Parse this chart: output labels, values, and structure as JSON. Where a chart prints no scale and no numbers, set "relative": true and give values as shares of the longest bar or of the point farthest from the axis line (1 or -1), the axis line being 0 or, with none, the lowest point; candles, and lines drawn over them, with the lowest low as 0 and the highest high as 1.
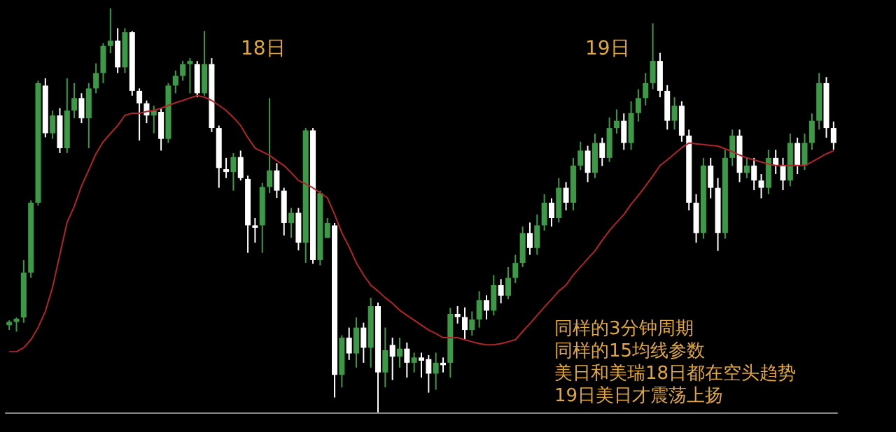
{
  "chart_data": [
    {
      "type": "candlestick",
      "relative": true,
      "categories": [
        null,
        null,
        null,
        null,
        null,
        null,
        null,
        null,
        null,
        null,
        null,
        null,
        null,
        null,
        null,
        null,
        null,
        null,
        null,
        null,
        null,
        null,
        null,
        null,
        null,
        null,
        null,
        null,
        null,
        null,
        null,
        null,
        null,
        null,
        null,
        null,
        null,
        null,
        null,
        null,
        null,
        null,
        null,
        null,
        null,
        null,
        null,
        null,
        null,
        null,
        null,
        null,
        null,
        null,
        null,
        null,
        null,
        null,
        null,
        null,
        null,
        null,
        null,
        null,
        null,
        null,
        null,
        null,
        null,
        null,
        null,
        null,
        null,
        null,
        null,
        null,
        null,
        null,
        null,
        null,
        null,
        null,
        null,
        null,
        null,
        null,
        null,
        null,
        null,
        null,
        null,
        null,
        null,
        null,
        null,
        null,
        null,
        null,
        null,
        null,
        null,
        null,
        null,
        null,
        null,
        null,
        null,
        null,
        null,
        null,
        null,
        null,
        null,
        null,
        null
      ],
      "ohlc": [
        [
          0.216,
          0.228,
          0.204,
          0.224
        ],
        [
          0.224,
          0.235,
          0.2,
          0.232
        ],
        [
          0.235,
          0.377,
          0.222,
          0.346
        ],
        [
          0.346,
          0.525,
          0.333,
          0.519
        ],
        [
          0.519,
          0.821,
          0.512,
          0.815
        ],
        [
          0.809,
          0.827,
          0.681,
          0.691
        ],
        [
          0.691,
          0.747,
          0.677,
          0.735
        ],
        [
          0.735,
          0.753,
          0.642,
          0.654
        ],
        [
          0.654,
          0.827,
          0.642,
          0.747
        ],
        [
          0.747,
          0.815,
          0.728,
          0.778
        ],
        [
          0.778,
          0.79,
          0.716,
          0.728
        ],
        [
          0.728,
          0.815,
          0.654,
          0.802
        ],
        [
          0.802,
          0.864,
          0.79,
          0.84
        ],
        [
          0.84,
          0.914,
          0.815,
          0.907
        ],
        [
          0.907,
          1,
          0.889,
          0.92
        ],
        [
          0.92,
          0.951,
          0.84,
          0.854
        ],
        [
          0.854,
          0.951,
          0.84,
          0.941
        ],
        [
          0.941,
          0.944,
          0.784,
          0.796
        ],
        [
          0.796,
          0.802,
          0.673,
          0.765
        ],
        [
          0.765,
          0.772,
          0.716,
          0.735
        ],
        [
          0.735,
          0.759,
          0.691,
          0.747
        ],
        [
          0.744,
          0.753,
          0.648,
          0.677
        ],
        [
          0.677,
          0.815,
          0.667,
          0.809
        ],
        [
          0.809,
          0.846,
          0.79,
          0.833
        ],
        [
          0.833,
          0.87,
          0.821,
          0.862
        ],
        [
          0.862,
          0.877,
          0.79,
          0.87
        ],
        [
          0.862,
          0.87,
          0.78,
          0.79
        ],
        [
          0.79,
          0.944,
          0.784,
          0.862
        ],
        [
          0.862,
          0.877,
          0.694,
          0.704
        ],
        [
          0.704,
          0.71,
          0.556,
          0.605
        ],
        [
          0.602,
          0.63,
          0.58,
          0.595
        ],
        [
          0.595,
          0.642,
          0.549,
          0.632
        ],
        [
          0.632,
          0.648,
          0.574,
          0.58
        ],
        [
          0.578,
          0.586,
          0.395,
          0.463
        ],
        [
          0.463,
          0.481,
          0.42,
          0.457
        ],
        [
          0.463,
          0.568,
          0.395,
          0.558
        ],
        [
          0.558,
          0.778,
          0.543,
          0.599
        ],
        [
          0.599,
          0.617,
          0.531,
          0.549
        ],
        [
          0.549,
          0.556,
          0.438,
          0.469
        ],
        [
          0.469,
          0.506,
          0.432,
          0.494
        ],
        [
          0.494,
          0.506,
          0.401,
          0.42
        ],
        [
          0.42,
          0.704,
          0.37,
          0.698
        ],
        [
          0.698,
          0.704,
          0.368,
          0.377
        ],
        [
          0.377,
          0.549,
          0.364,
          0.543
        ],
        [
          0.432,
          0.481,
          0.432,
          0.469
        ],
        [
          0.463,
          0.469,
          0.037,
          0.093
        ],
        [
          0.093,
          0.191,
          0.062,
          0.185
        ],
        [
          0.185,
          0.21,
          0.13,
          0.146
        ],
        [
          0.146,
          0.235,
          0.111,
          0.21
        ],
        [
          0.21,
          0.222,
          0.123,
          0.16
        ],
        [
          0.16,
          0.284,
          0.111,
          0.263
        ],
        [
          0.263,
          0.272,
          0,
          0.099
        ],
        [
          0.099,
          0.21,
          0.062,
          0.154
        ],
        [
          0.167,
          0.185,
          0.08,
          0.138
        ],
        [
          0.138,
          0.185,
          0.111,
          0.158
        ],
        [
          0.158,
          0.173,
          0.086,
          0.123
        ],
        [
          0.123,
          0.148,
          0.099,
          0.136
        ],
        [
          0.136,
          0.148,
          0.086,
          0.128
        ],
        [
          0.132,
          0.142,
          0.049,
          0.096
        ],
        [
          0.096,
          0.148,
          0.056,
          0.123
        ],
        [
          0.123,
          0.136,
          0.099,
          0.117
        ],
        [
          0.123,
          0.259,
          0.086,
          0.244
        ],
        [
          0.244,
          0.263,
          0.22,
          0.236
        ],
        [
          0.236,
          0.26,
          0.18,
          0.204
        ],
        [
          0.204,
          0.25,
          0.19,
          0.23
        ],
        [
          0.23,
          0.3,
          0.21,
          0.278
        ],
        [
          0.278,
          0.29,
          0.23,
          0.252
        ],
        [
          0.252,
          0.34,
          0.24,
          0.315
        ],
        [
          0.315,
          0.33,
          0.27,
          0.289
        ],
        [
          0.289,
          0.36,
          0.28,
          0.333
        ],
        [
          0.333,
          0.39,
          0.32,
          0.37
        ],
        [
          0.37,
          0.46,
          0.36,
          0.444
        ],
        [
          0.444,
          0.47,
          0.39,
          0.407
        ],
        [
          0.407,
          0.49,
          0.39,
          0.463
        ],
        [
          0.463,
          0.54,
          0.45,
          0.519
        ],
        [
          0.519,
          0.53,
          0.46,
          0.481
        ],
        [
          0.481,
          0.58,
          0.47,
          0.556
        ],
        [
          0.556,
          0.57,
          0.5,
          0.519
        ],
        [
          0.519,
          0.63,
          0.5,
          0.611
        ],
        [
          0.611,
          0.67,
          0.6,
          0.648
        ],
        [
          0.648,
          0.66,
          0.57,
          0.593
        ],
        [
          0.593,
          0.69,
          0.58,
          0.667
        ],
        [
          0.667,
          0.68,
          0.61,
          0.63
        ],
        [
          0.63,
          0.73,
          0.62,
          0.704
        ],
        [
          0.704,
          0.75,
          0.69,
          0.722
        ],
        [
          0.722,
          0.74,
          0.65,
          0.667
        ],
        [
          0.667,
          0.77,
          0.65,
          0.741
        ],
        [
          0.741,
          0.8,
          0.72,
          0.778
        ],
        [
          0.778,
          0.84,
          0.76,
          0.815
        ],
        [
          0.815,
          0.963,
          0.8,
          0.87
        ],
        [
          0.87,
          0.89,
          0.78,
          0.796
        ],
        [
          0.796,
          0.81,
          0.7,
          0.722
        ],
        [
          0.722,
          0.78,
          0.7,
          0.759
        ],
        [
          0.759,
          0.77,
          0.67,
          0.685
        ],
        [
          0.685,
          0.7,
          0.5,
          0.519
        ],
        [
          0.519,
          0.54,
          0.42,
          0.444
        ],
        [
          0.444,
          0.63,
          0.43,
          0.611
        ],
        [
          0.611,
          0.63,
          0.53,
          0.556
        ],
        [
          0.556,
          0.58,
          0.4,
          0.444
        ],
        [
          0.444,
          0.65,
          0.43,
          0.63
        ],
        [
          0.63,
          0.7,
          0.61,
          0.685
        ],
        [
          0.685,
          0.7,
          0.57,
          0.593
        ],
        [
          0.593,
          0.63,
          0.58,
          0.611
        ],
        [
          0.611,
          0.63,
          0.55,
          0.574
        ],
        [
          0.574,
          0.59,
          0.53,
          0.556
        ],
        [
          0.556,
          0.65,
          0.54,
          0.63
        ],
        [
          0.63,
          0.65,
          0.59,
          0.611
        ],
        [
          0.611,
          0.63,
          0.55,
          0.574
        ],
        [
          0.574,
          0.69,
          0.56,
          0.667
        ],
        [
          0.667,
          0.68,
          0.59,
          0.611
        ],
        [
          0.611,
          0.69,
          0.6,
          0.667
        ],
        [
          0.667,
          0.74,
          0.65,
          0.722
        ],
        [
          0.722,
          0.84,
          0.7,
          0.815
        ],
        [
          0.815,
          0.83,
          0.68,
          0.704
        ],
        [
          0.704,
          0.72,
          0.65,
          0.667
        ]
      ],
      "colors": [
        "#3c9a46",
        "#3c9a46",
        "#3c9a46",
        "#3c9a46",
        "#3c9a46",
        "#ffffff",
        "#3c9a46",
        "#ffffff",
        "#3c9a46",
        "#3c9a46",
        "#ffffff",
        "#3c9a46",
        "#3c9a46",
        "#3c9a46",
        "#3c9a46",
        "#ffffff",
        "#3c9a46",
        "#ffffff",
        "#ffffff",
        "#ffffff",
        "#3c9a46",
        "#ffffff",
        "#3c9a46",
        "#3c9a46",
        "#3c9a46",
        "#3c9a46",
        "#ffffff",
        "#3c9a46",
        "#ffffff",
        "#ffffff",
        "#ffffff",
        "#3c9a46",
        "#ffffff",
        "#ffffff",
        "#ffffff",
        "#3c9a46",
        "#3c9a46",
        "#ffffff",
        "#ffffff",
        "#3c9a46",
        "#ffffff",
        "#3c9a46",
        "#ffffff",
        "#3c9a46",
        "#3c9a46",
        "#ffffff",
        "#3c9a46",
        "#ffffff",
        "#3c9a46",
        "#ffffff",
        "#3c9a46",
        "#ffffff",
        "#3c9a46",
        "#ffffff",
        "#3c9a46",
        "#ffffff",
        "#3c9a46",
        "#ffffff",
        "#ffffff",
        "#3c9a46",
        "#ffffff",
        "#3c9a46",
        "#ffffff",
        "#ffffff",
        "#3c9a46",
        "#3c9a46",
        "#ffffff",
        "#3c9a46",
        "#ffffff",
        "#3c9a46",
        "#3c9a46",
        "#3c9a46",
        "#ffffff",
        "#3c9a46",
        "#3c9a46",
        "#ffffff",
        "#3c9a46",
        "#ffffff",
        "#3c9a46",
        "#3c9a46",
        "#ffffff",
        "#3c9a46",
        "#ffffff",
        "#3c9a46",
        "#3c9a46",
        "#ffffff",
        "#3c9a46",
        "#3c9a46",
        "#3c9a46",
        "#3c9a46",
        "#ffffff",
        "#ffffff",
        "#3c9a46",
        "#ffffff",
        "#ffffff",
        "#ffffff",
        "#3c9a46",
        "#ffffff",
        "#ffffff",
        "#3c9a46",
        "#3c9a46",
        "#ffffff",
        "#3c9a46",
        "#ffffff",
        "#ffffff",
        "#3c9a46",
        "#ffffff",
        "#ffffff",
        "#3c9a46",
        "#ffffff",
        "#3c9a46",
        "#3c9a46",
        "#3c9a46",
        "#ffffff",
        "#ffffff"
      ],
      "annotations": [
        "18日",
        "19日",
        "同样的3分钟周期",
        "同样的15均线参数",
        "美日和美瑞18日都在空头趋势",
        "19日美日才震荡上扬"
      ]
    },
    {
      "type": "line",
      "relative": true,
      "color": "#b0252a",
      "categories": [
        null,
        null,
        null,
        null,
        null,
        null,
        null,
        null,
        null,
        null,
        null,
        null,
        null,
        null,
        null,
        null,
        null,
        null,
        null,
        null,
        null,
        null,
        null,
        null,
        null,
        null,
        null,
        null,
        null,
        null,
        null,
        null,
        null,
        null,
        null,
        null,
        null,
        null,
        null,
        null,
        null,
        null,
        null,
        null,
        null,
        null,
        null,
        null,
        null,
        null,
        null,
        null,
        null,
        null,
        null,
        null,
        null,
        null,
        null,
        null,
        null,
        null,
        null,
        null,
        null,
        null,
        null,
        null,
        null,
        null,
        null,
        null,
        null,
        null,
        null,
        null,
        null,
        null,
        null,
        null,
        null,
        null,
        null,
        null,
        null,
        null,
        null,
        null,
        null,
        null,
        null,
        null,
        null,
        null,
        null,
        null,
        null,
        null,
        null,
        null,
        null,
        null,
        null,
        null,
        null,
        null,
        null,
        null,
        null,
        null,
        null,
        null,
        null,
        null,
        null
      ],
      "values": [
        0,
        0,
        0.016,
        0.047,
        0.095,
        0.158,
        0.252,
        0.379,
        0.505,
        0.568,
        0.647,
        0.71,
        0.773,
        0.82,
        0.852,
        0.883,
        0.923,
        0.931,
        0.931,
        0.938,
        0.942,
        0.951,
        0.962,
        0.972,
        0.981,
        0.991,
        1,
        0.994,
        0.981,
        0.962,
        0.942,
        0.915,
        0.883,
        0.836,
        0.795,
        0.781,
        0.767,
        0.746,
        0.727,
        0.699,
        0.669,
        0.655,
        0.64,
        0.62,
        0.601,
        0.536,
        0.464,
        0.41,
        0.347,
        0.3,
        0.26,
        0.237,
        0.211,
        0.189,
        0.162,
        0.142,
        0.123,
        0.104,
        0.085,
        0.071,
        0.055,
        0.055,
        0.055,
        0.047,
        0.039,
        0.032,
        0.027,
        0.027,
        0.032,
        0.039,
        0.047,
        0.079,
        0.11,
        0.142,
        0.174,
        0.205,
        0.237,
        0.26,
        0.3,
        0.331,
        0.363,
        0.394,
        0.435,
        0.473,
        0.505,
        0.536,
        0.576,
        0.61,
        0.647,
        0.686,
        0.727,
        0.749,
        0.773,
        0.797,
        0.815,
        0.812,
        0.809,
        0.806,
        0.803,
        0.792,
        0.781,
        0.768,
        0.757,
        0.749,
        0.741,
        0.733,
        0.727,
        0.727,
        0.727,
        0.727,
        0.727,
        0.741,
        0.757,
        0.773,
        0.785
      ]
    }
  ]
}
